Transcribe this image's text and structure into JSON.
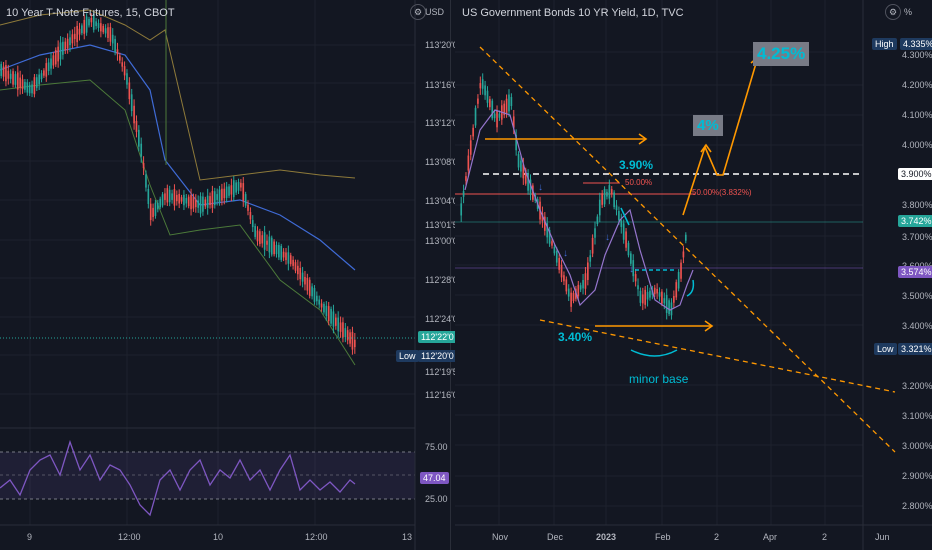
{
  "left_chart": {
    "title": "10 Year T-Note Futures, 15, CBOT",
    "currency": "USD",
    "price_labels": [
      "113'20'0",
      "113'16'0",
      "113'12'0",
      "113'08'0",
      "113'04'0",
      "113'01'5",
      "113'00'0",
      "112'28'0",
      "112'24'0",
      "112'20'0",
      "112'19'5",
      "112'16'0"
    ],
    "last_price_badge": "112'22'0",
    "low_label": "Low",
    "low_price_badge": "112'20'0",
    "rsi_levels": [
      "75.00",
      "25.00"
    ],
    "rsi_value_badge": "47.04",
    "time_labels": [
      "9",
      "12:00",
      "10",
      "12:00",
      "13"
    ]
  },
  "right_chart": {
    "title": "US Government Bonds 10 YR Yield, 1D, TVC",
    "unit": "%",
    "price_labels": [
      "4.300%",
      "4.200%",
      "4.100%",
      "4.000%",
      "3.800%",
      "3.700%",
      "3.600%",
      "3.500%",
      "3.400%",
      "3.200%",
      "3.100%",
      "3.000%",
      "2.900%",
      "2.800%"
    ],
    "high_label": "High",
    "high_badge": "4.335%",
    "level_badge": "3.900%",
    "last_badge": "3.742%",
    "ma_badge": "3.574%",
    "low_label": "Low",
    "low_badge": "3.321%",
    "time_labels": [
      "Nov",
      "Dec",
      "2023",
      "Feb",
      "2",
      "Apr",
      "2",
      "Jun"
    ],
    "annotations": {
      "target_high": "4.25%",
      "target_mid": "4%",
      "level_390": "3.90%",
      "level_340": "3.40%",
      "fib_small": "50.00%",
      "fib_large": "50.00%(3.832%)",
      "minor_base": "minor base"
    }
  },
  "colors": {
    "background": "#131722",
    "candle_up": "#26a69a",
    "candle_down": "#ef5350",
    "annotation_orange": "#ff9800",
    "annotation_teal": "#00bcd4",
    "rsi_purple": "#7e57c2"
  },
  "icons": {
    "left_settings": "gear-icon",
    "right_settings": "gear-icon"
  }
}
